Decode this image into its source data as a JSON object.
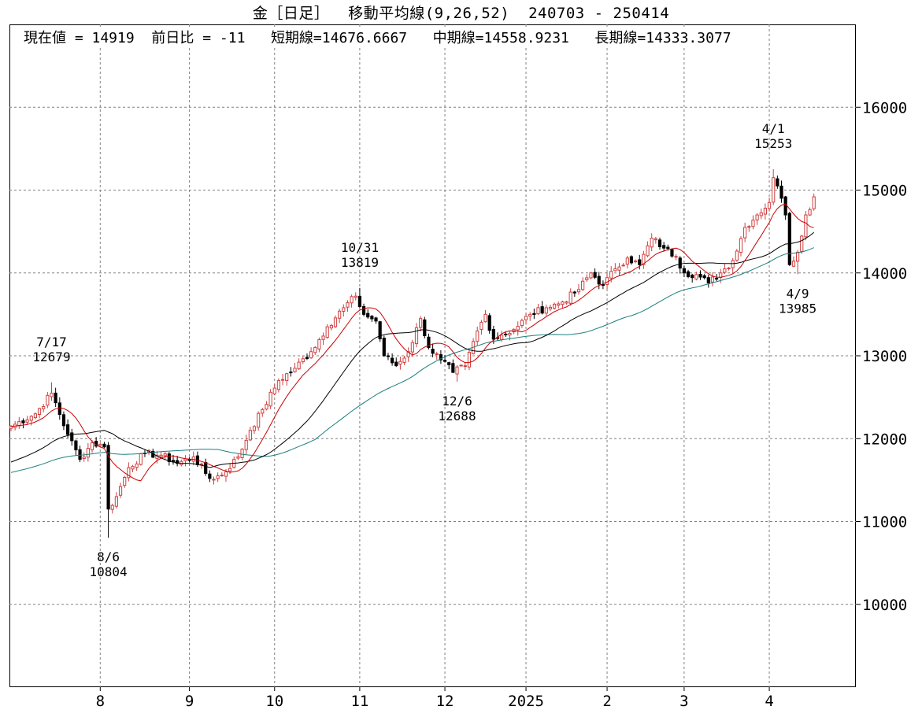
{
  "chart_data": {
    "type": "candlestick",
    "title": {
      "name": "金［日足］",
      "indicator": "移動平均線(9,26,52)",
      "range": "240703 - 250414"
    },
    "stats": {
      "current": "現在値 = 14919",
      "change": "前日比 = -11",
      "short_ma": "短期線=14676.6667",
      "mid_ma": "中期線=14558.9231",
      "long_ma": "長期線=14333.3077"
    },
    "ylim": [
      9000,
      17000
    ],
    "yticks": [
      "10000",
      "11000",
      "12000",
      "13000",
      "14000",
      "15000",
      "16000"
    ],
    "xlabels": [
      "8",
      "9",
      "10",
      "11",
      "12",
      "2025",
      "2",
      "3",
      "4"
    ],
    "xlabel_days": [
      22,
      44,
      65,
      86,
      107,
      127,
      147,
      166,
      187
    ],
    "grid": "dashed",
    "annotations": [
      {
        "date": "7/17",
        "value": "12679",
        "day": 10,
        "price": 12679,
        "side": "above"
      },
      {
        "date": "8/6",
        "value": "10804",
        "day": 24,
        "price": 10804,
        "side": "below"
      },
      {
        "date": "10/31",
        "value": "13819",
        "day": 86,
        "price": 13819,
        "side": "above"
      },
      {
        "date": "12/6",
        "value": "12688",
        "day": 110,
        "price": 12688,
        "side": "below"
      },
      {
        "date": "4/1",
        "value": "15253",
        "day": 188,
        "price": 15253,
        "side": "above"
      },
      {
        "date": "4/9",
        "value": "13985",
        "day": 194,
        "price": 13985,
        "side": "below"
      }
    ],
    "anchors": [
      [
        0,
        12150
      ],
      [
        6,
        12300
      ],
      [
        10,
        12550
      ],
      [
        14,
        12050
      ],
      [
        17,
        11750
      ],
      [
        20,
        11950
      ],
      [
        23,
        11900
      ],
      [
        24,
        11150
      ],
      [
        26,
        11300
      ],
      [
        29,
        11650
      ],
      [
        33,
        11820
      ],
      [
        37,
        11800
      ],
      [
        41,
        11700
      ],
      [
        45,
        11780
      ],
      [
        49,
        11520
      ],
      [
        52,
        11560
      ],
      [
        56,
        11780
      ],
      [
        59,
        12100
      ],
      [
        62,
        12350
      ],
      [
        66,
        12700
      ],
      [
        70,
        12850
      ],
      [
        74,
        13050
      ],
      [
        78,
        13350
      ],
      [
        82,
        13580
      ],
      [
        85,
        13720
      ],
      [
        87,
        13500
      ],
      [
        90,
        13420
      ],
      [
        92,
        13000
      ],
      [
        95,
        12880
      ],
      [
        98,
        13050
      ],
      [
        101,
        13450
      ],
      [
        103,
        13100
      ],
      [
        106,
        12950
      ],
      [
        109,
        12800
      ],
      [
        112,
        12880
      ],
      [
        115,
        13300
      ],
      [
        117,
        13500
      ],
      [
        119,
        13200
      ],
      [
        121,
        13250
      ],
      [
        124,
        13320
      ],
      [
        128,
        13500
      ],
      [
        132,
        13580
      ],
      [
        136,
        13650
      ],
      [
        140,
        13800
      ],
      [
        143,
        14000
      ],
      [
        146,
        13850
      ],
      [
        149,
        14050
      ],
      [
        152,
        14180
      ],
      [
        155,
        14100
      ],
      [
        158,
        14420
      ],
      [
        161,
        14300
      ],
      [
        164,
        14200
      ],
      [
        166,
        14000
      ],
      [
        169,
        13980
      ],
      [
        172,
        13880
      ],
      [
        175,
        14000
      ],
      [
        178,
        14150
      ],
      [
        181,
        14550
      ],
      [
        184,
        14700
      ],
      [
        187,
        14850
      ],
      [
        188,
        15150
      ],
      [
        189,
        15050
      ],
      [
        191,
        14700
      ],
      [
        192,
        14100
      ],
      [
        194,
        14250
      ],
      [
        196,
        14700
      ],
      [
        198,
        14919
      ]
    ],
    "short_ma_period": 9,
    "mid_ma_period": 26,
    "long_ma_period": 52,
    "series_colors": {
      "up_candle": "#d04040",
      "down_candle": "#000000",
      "short_ma": "#cc0000",
      "mid_ma": "#000000",
      "long_ma": "#1a7f7f"
    }
  }
}
